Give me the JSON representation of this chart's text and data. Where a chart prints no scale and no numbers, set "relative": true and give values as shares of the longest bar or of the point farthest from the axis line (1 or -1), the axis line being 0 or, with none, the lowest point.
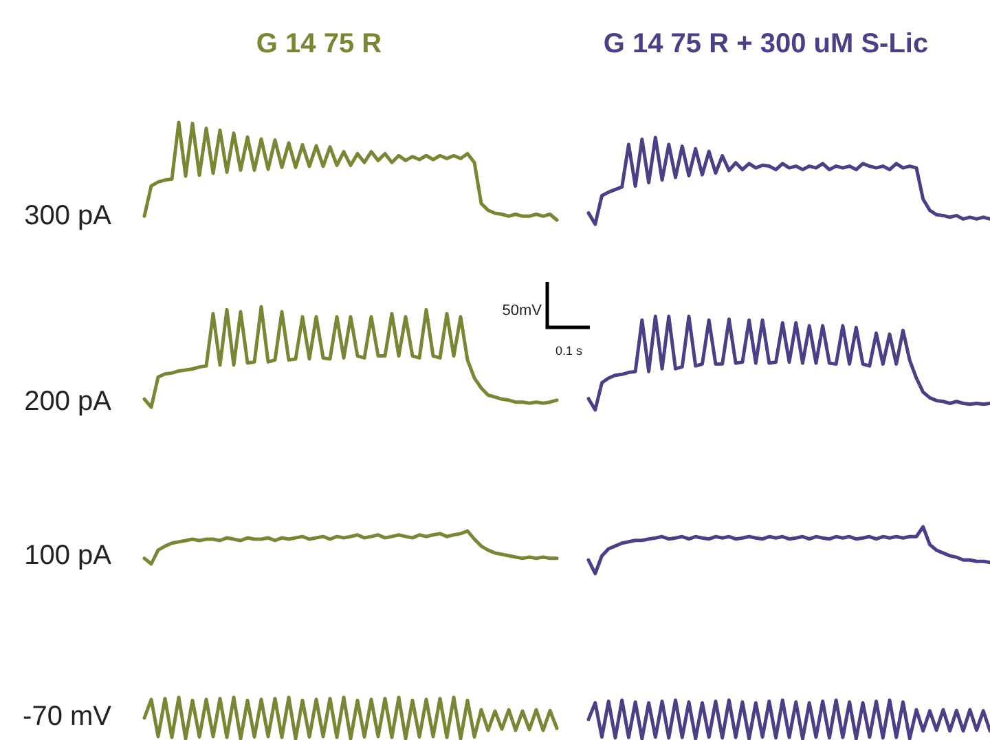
{
  "chart_data": [
    {
      "type": "line",
      "relative": true,
      "title": "G 14 75 R",
      "ylabel": "300 pA",
      "color": "#7a8535",
      "categories": [
        null,
        null,
        null,
        null,
        null,
        null,
        null,
        null,
        null,
        null,
        null,
        null,
        null,
        null,
        null,
        null,
        null,
        null,
        null,
        null,
        null,
        null,
        null,
        null,
        null,
        null,
        null,
        null,
        null,
        null,
        null,
        null,
        null,
        null,
        null,
        null,
        null,
        null,
        null,
        null,
        null,
        null,
        null,
        null,
        null,
        null,
        null,
        null,
        null,
        null,
        null,
        null,
        null,
        null,
        null,
        null,
        null,
        null,
        null,
        null,
        null
      ],
      "values": [
        0.04,
        0.35,
        0.39,
        0.41,
        0.42,
        1,
        0.45,
        0.99,
        0.46,
        0.94,
        0.48,
        0.92,
        0.49,
        0.89,
        0.51,
        0.85,
        0.51,
        0.83,
        0.52,
        0.82,
        0.54,
        0.79,
        0.54,
        0.77,
        0.55,
        0.76,
        0.55,
        0.75,
        0.56,
        0.7,
        0.56,
        0.68,
        0.59,
        0.7,
        0.61,
        0.68,
        0.59,
        0.66,
        0.61,
        0.65,
        0.62,
        0.66,
        0.62,
        0.66,
        0.63,
        0.66,
        0.63,
        0.68,
        0.59,
        0.17,
        0.1,
        0.07,
        0.06,
        0.04,
        0.06,
        0.04,
        0.04,
        0.06,
        0.04,
        0.06,
        0
      ]
    },
    {
      "type": "line",
      "relative": true,
      "title": "G 14 75 R  +  300 uM S-Lic",
      "color": "#4e3f85",
      "categories": [
        null,
        null,
        null,
        null,
        null,
        null,
        null,
        null,
        null,
        null,
        null,
        null,
        null,
        null,
        null,
        null,
        null,
        null,
        null,
        null,
        null,
        null,
        null,
        null,
        null,
        null,
        null,
        null,
        null,
        null,
        null,
        null,
        null,
        null,
        null,
        null,
        null,
        null,
        null,
        null,
        null,
        null,
        null,
        null,
        null,
        null,
        null,
        null,
        null,
        null,
        null,
        null,
        null,
        null,
        null,
        null,
        null,
        null,
        null,
        null,
        null
      ],
      "values": [
        0.13,
        0,
        0.33,
        0.37,
        0.4,
        0.43,
        0.92,
        0.44,
        0.98,
        0.48,
        1,
        0.51,
        0.92,
        0.54,
        0.9,
        0.56,
        0.87,
        0.57,
        0.84,
        0.59,
        0.79,
        0.62,
        0.71,
        0.63,
        0.7,
        0.65,
        0.68,
        0.67,
        0.63,
        0.7,
        0.65,
        0.67,
        0.63,
        0.67,
        0.65,
        0.7,
        0.63,
        0.67,
        0.65,
        0.67,
        0.63,
        0.7,
        0.67,
        0.65,
        0.67,
        0.63,
        0.7,
        0.65,
        0.67,
        0.65,
        0.29,
        0.16,
        0.11,
        0.1,
        0.08,
        0.1,
        0.06,
        0.08,
        0.06,
        0.08,
        0.06
      ]
    },
    {
      "type": "line",
      "relative": true,
      "ylabel": "200 pA",
      "color": "#7a8535",
      "categories": [
        null,
        null,
        null,
        null,
        null,
        null,
        null,
        null,
        null,
        null,
        null,
        null,
        null,
        null,
        null,
        null,
        null,
        null,
        null,
        null,
        null,
        null,
        null,
        null,
        null,
        null,
        null,
        null,
        null,
        null,
        null,
        null,
        null,
        null,
        null,
        null,
        null,
        null,
        null,
        null,
        null,
        null,
        null,
        null,
        null,
        null,
        null,
        null,
        null,
        null,
        null,
        null,
        null,
        null,
        null,
        null,
        null,
        null,
        null,
        null,
        null
      ],
      "values": [
        0.08,
        0,
        0.3,
        0.33,
        0.34,
        0.36,
        0.37,
        0.38,
        0.4,
        0.41,
        0.93,
        0.42,
        0.97,
        0.42,
        0.95,
        0.44,
        0.45,
        1,
        0.45,
        0.47,
        0.95,
        0.47,
        0.48,
        0.9,
        0.48,
        0.9,
        0.49,
        0.48,
        0.9,
        0.49,
        0.9,
        0.51,
        0.49,
        0.9,
        0.51,
        0.51,
        0.93,
        0.51,
        0.9,
        0.51,
        0.49,
        0.97,
        0.51,
        0.49,
        0.93,
        0.51,
        0.9,
        0.47,
        0.29,
        0.19,
        0.12,
        0.1,
        0.08,
        0.07,
        0.05,
        0.05,
        0.04,
        0.05,
        0.04,
        0.05,
        0.07
      ]
    },
    {
      "type": "line",
      "relative": true,
      "color": "#4e3f85",
      "annotations": [
        "50mV",
        "0.1 s"
      ],
      "categories": [
        null,
        null,
        null,
        null,
        null,
        null,
        null,
        null,
        null,
        null,
        null,
        null,
        null,
        null,
        null,
        null,
        null,
        null,
        null,
        null,
        null,
        null,
        null,
        null,
        null,
        null,
        null,
        null,
        null,
        null,
        null,
        null,
        null,
        null,
        null,
        null,
        null,
        null,
        null,
        null,
        null,
        null,
        null,
        null,
        null,
        null,
        null,
        null,
        null,
        null,
        null,
        null,
        null,
        null,
        null,
        null,
        null,
        null,
        null,
        null,
        null
      ],
      "values": [
        0.12,
        0,
        0.29,
        0.34,
        0.37,
        0.38,
        0.4,
        0.41,
        0.96,
        0.41,
        1,
        0.44,
        1,
        0.44,
        0.46,
        1,
        0.47,
        0.49,
        0.96,
        0.49,
        0.49,
        0.97,
        0.5,
        0.51,
        0.96,
        0.5,
        0.96,
        0.5,
        0.51,
        0.93,
        0.51,
        0.93,
        0.5,
        0.9,
        0.5,
        0.9,
        0.5,
        0.49,
        0.9,
        0.49,
        0.88,
        0.49,
        0.47,
        0.82,
        0.49,
        0.81,
        0.49,
        0.85,
        0.53,
        0.34,
        0.19,
        0.13,
        0.1,
        0.09,
        0.07,
        0.09,
        0.07,
        0.06,
        0.07,
        0.06,
        0.07
      ]
    },
    {
      "type": "line",
      "relative": true,
      "ylabel": "100 pA",
      "color": "#7a8535",
      "categories": [
        null,
        null,
        null,
        null,
        null,
        null,
        null,
        null,
        null,
        null,
        null,
        null,
        null,
        null,
        null,
        null,
        null,
        null,
        null,
        null,
        null,
        null,
        null,
        null,
        null,
        null,
        null,
        null,
        null,
        null,
        null,
        null,
        null,
        null,
        null,
        null,
        null,
        null,
        null,
        null,
        null,
        null,
        null,
        null,
        null,
        null,
        null,
        null,
        null,
        null,
        null,
        null,
        null,
        null,
        null,
        null,
        null,
        null,
        null,
        null,
        null
      ],
      "values": [
        0.17,
        0,
        0.42,
        0.54,
        0.63,
        0.67,
        0.71,
        0.75,
        0.71,
        0.75,
        0.75,
        0.71,
        0.79,
        0.75,
        0.71,
        0.79,
        0.75,
        0.75,
        0.79,
        0.71,
        0.79,
        0.75,
        0.79,
        0.83,
        0.75,
        0.79,
        0.83,
        0.75,
        0.83,
        0.79,
        0.83,
        0.88,
        0.79,
        0.83,
        0.88,
        0.79,
        0.83,
        0.88,
        0.83,
        0.79,
        0.88,
        0.83,
        0.88,
        0.92,
        0.83,
        0.88,
        0.92,
        1,
        0.75,
        0.54,
        0.42,
        0.33,
        0.29,
        0.25,
        0.21,
        0.17,
        0.21,
        0.17,
        0.21,
        0.17,
        0.17
      ]
    },
    {
      "type": "line",
      "relative": true,
      "color": "#4e3f85",
      "categories": [
        null,
        null,
        null,
        null,
        null,
        null,
        null,
        null,
        null,
        null,
        null,
        null,
        null,
        null,
        null,
        null,
        null,
        null,
        null,
        null,
        null,
        null,
        null,
        null,
        null,
        null,
        null,
        null,
        null,
        null,
        null,
        null,
        null,
        null,
        null,
        null,
        null,
        null,
        null,
        null,
        null,
        null,
        null,
        null,
        null,
        null,
        null,
        null,
        null,
        null,
        null,
        null,
        null,
        null,
        null,
        null,
        null,
        null,
        null,
        null,
        null
      ],
      "values": [
        0.29,
        0,
        0.38,
        0.53,
        0.59,
        0.65,
        0.68,
        0.71,
        0.71,
        0.74,
        0.76,
        0.79,
        0.74,
        0.76,
        0.79,
        0.74,
        0.79,
        0.76,
        0.74,
        0.79,
        0.76,
        0.79,
        0.74,
        0.76,
        0.79,
        0.76,
        0.74,
        0.79,
        0.76,
        0.79,
        0.74,
        0.76,
        0.79,
        0.74,
        0.79,
        0.76,
        0.74,
        0.79,
        0.76,
        0.79,
        0.74,
        0.76,
        0.79,
        0.74,
        0.79,
        0.76,
        0.79,
        0.76,
        0.79,
        0.79,
        1,
        0.62,
        0.5,
        0.44,
        0.38,
        0.35,
        0.29,
        0.29,
        0.26,
        0.26,
        0.24
      ]
    },
    {
      "type": "line",
      "relative": true,
      "ylabel": "-70 mV",
      "color": "#7a8535",
      "categories": [
        null,
        null,
        null,
        null,
        null,
        null,
        null,
        null,
        null,
        null,
        null,
        null,
        null,
        null,
        null,
        null,
        null,
        null,
        null,
        null,
        null,
        null,
        null,
        null,
        null,
        null,
        null,
        null,
        null,
        null,
        null,
        null,
        null,
        null,
        null,
        null,
        null,
        null,
        null,
        null,
        null,
        null,
        null,
        null,
        null,
        null,
        null,
        null,
        null,
        null,
        null,
        null,
        null,
        null,
        null,
        null,
        null,
        null,
        null,
        null,
        null
      ],
      "values": [
        0.5,
        0.95,
        0.05,
        0.97,
        0.03,
        1,
        0,
        0.93,
        0.04,
        0.95,
        0.05,
        0.97,
        0.03,
        1,
        0,
        0.93,
        0.04,
        0.95,
        0.05,
        0.97,
        0.03,
        1,
        0,
        0.93,
        0.04,
        0.95,
        0.05,
        0.97,
        0.03,
        1,
        0,
        0.93,
        0.04,
        0.95,
        0.05,
        0.97,
        0.03,
        1,
        0,
        0.93,
        0.04,
        0.95,
        0.05,
        0.97,
        0.03,
        1,
        0,
        0.93,
        0.04,
        0.7,
        0.2,
        0.67,
        0.23,
        0.7,
        0.2,
        0.67,
        0.22,
        0.7,
        0.2,
        0.68,
        0.25
      ]
    },
    {
      "type": "line",
      "relative": true,
      "color": "#4e3f85",
      "categories": [
        null,
        null,
        null,
        null,
        null,
        null,
        null,
        null,
        null,
        null,
        null,
        null,
        null,
        null,
        null,
        null,
        null,
        null,
        null,
        null,
        null,
        null,
        null,
        null,
        null,
        null,
        null,
        null,
        null,
        null,
        null,
        null,
        null,
        null,
        null,
        null,
        null,
        null,
        null,
        null,
        null,
        null,
        null,
        null,
        null,
        null,
        null,
        null,
        null,
        null,
        null,
        null,
        null,
        null,
        null,
        null,
        null,
        null,
        null,
        null,
        null
      ],
      "values": [
        0.5,
        0.93,
        0.04,
        0.97,
        0.02,
        1,
        0.03,
        0.95,
        0,
        0.93,
        0.04,
        0.97,
        0.02,
        1,
        0.03,
        0.95,
        0,
        0.93,
        0.04,
        0.97,
        0.02,
        1,
        0.03,
        0.95,
        0,
        0.93,
        0.04,
        0.97,
        0.02,
        1,
        0.03,
        0.95,
        0,
        0.93,
        0.04,
        0.97,
        0.02,
        1,
        0.03,
        0.95,
        0,
        0.93,
        0.04,
        0.97,
        0.02,
        1,
        0.03,
        0.95,
        0,
        0.75,
        0.2,
        0.72,
        0.22,
        0.75,
        0.2,
        0.73,
        0.2,
        0.75,
        0.22,
        0.72,
        0.2
      ]
    }
  ]
}
